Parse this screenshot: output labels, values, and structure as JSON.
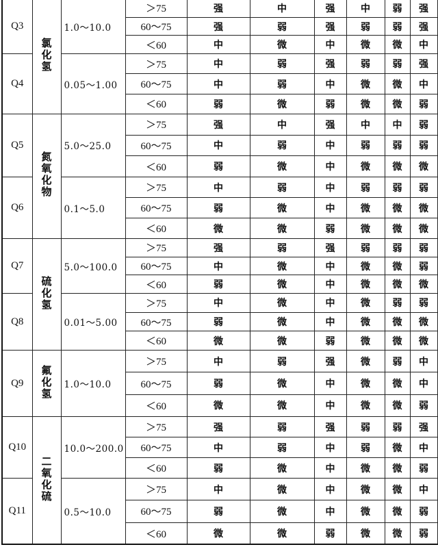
{
  "groups": [
    {
      "gas": "氯化氢",
      "items": [
        {
          "code": "Q3",
          "range": "1.0～10.0",
          "rows": [
            [
              "＞75",
              [
                "强",
                "中",
                "强",
                "中",
                "弱",
                "强"
              ]
            ],
            [
              "60～75",
              [
                "强",
                "弱",
                "强",
                "弱",
                "弱",
                "强"
              ]
            ],
            [
              "＜60",
              [
                "中",
                "微",
                "中",
                "微",
                "微",
                "中"
              ]
            ]
          ]
        },
        {
          "code": "Q4",
          "range": "0.05～1.00",
          "rows": [
            [
              "＞75",
              [
                "中",
                "弱",
                "强",
                "弱",
                "弱",
                "强"
              ]
            ],
            [
              "60～75",
              [
                "中",
                "弱",
                "中",
                "微",
                "微",
                "中"
              ]
            ],
            [
              "＜60",
              [
                "弱",
                "微",
                "弱",
                "微",
                "微",
                "弱"
              ]
            ]
          ]
        }
      ]
    },
    {
      "gas": "氮氧化物",
      "items": [
        {
          "code": "Q5",
          "range": "5.0～25.0",
          "rows": [
            [
              "＞75",
              [
                "强",
                "中",
                "强",
                "中",
                "中",
                "弱"
              ]
            ],
            [
              "60～75",
              [
                "中",
                "弱",
                "中",
                "弱",
                "弱",
                "弱"
              ]
            ],
            [
              "＜60",
              [
                "弱",
                "微",
                "中",
                "微",
                "微",
                "微"
              ]
            ]
          ]
        },
        {
          "code": "Q6",
          "range": "0.1～5.0",
          "rows": [
            [
              "＞75",
              [
                "中",
                "弱",
                "中",
                "弱",
                "弱",
                "弱"
              ]
            ],
            [
              "60～75",
              [
                "弱",
                "微",
                "中",
                "微",
                "微",
                "微"
              ]
            ],
            [
              "＜60",
              [
                "微",
                "微",
                "弱",
                "微",
                "微",
                "微"
              ]
            ]
          ]
        }
      ]
    },
    {
      "gas": "硫化氢",
      "items": [
        {
          "code": "Q7",
          "range": "5.0～100.0",
          "rows": [
            [
              "＞75",
              [
                "强",
                "弱",
                "强",
                "弱",
                "弱",
                "弱"
              ]
            ],
            [
              "60～75",
              [
                "中",
                "微",
                "中",
                "微",
                "微",
                "弱"
              ]
            ],
            [
              "＜60",
              [
                "弱",
                "微",
                "中",
                "微",
                "微",
                "微"
              ]
            ]
          ]
        },
        {
          "code": "Q8",
          "range": "0.01～5.00",
          "rows": [
            [
              "＞75",
              [
                "中",
                "微",
                "中",
                "微",
                "弱",
                "弱"
              ]
            ],
            [
              "60～75",
              [
                "弱",
                "微",
                "中",
                "微",
                "微",
                "微"
              ]
            ],
            [
              "＜60",
              [
                "微",
                "微",
                "弱",
                "微",
                "微",
                "微"
              ]
            ]
          ]
        }
      ]
    },
    {
      "gas": "氟化氢",
      "items": [
        {
          "code": "Q9",
          "range": "1.0～10.0",
          "rows": [
            [
              "＞75",
              [
                "中",
                "弱",
                "强",
                "微",
                "弱",
                "中"
              ]
            ],
            [
              "60～75",
              [
                "弱",
                "微",
                "中",
                "微",
                "微",
                "中"
              ]
            ],
            [
              "＜60",
              [
                "微",
                "微",
                "中",
                "微",
                "微",
                "弱"
              ]
            ]
          ]
        }
      ]
    },
    {
      "gas": "二氧化硫",
      "items": [
        {
          "code": "Q10",
          "range": "10.0～200.0",
          "rows": [
            [
              "＞75",
              [
                "强",
                "弱",
                "强",
                "弱",
                "弱",
                "强"
              ]
            ],
            [
              "60～75",
              [
                "中",
                "弱",
                "中",
                "弱",
                "微",
                "中"
              ]
            ],
            [
              "＜60",
              [
                "弱",
                "微",
                "中",
                "微",
                "微",
                "弱"
              ]
            ]
          ]
        },
        {
          "code": "Q11",
          "range": "0.5～10.0",
          "rows": [
            [
              "＞75",
              [
                "中",
                "微",
                "中",
                "微",
                "微",
                "中"
              ]
            ],
            [
              "60～75",
              [
                "弱",
                "微",
                "中",
                "微",
                "微",
                "弱"
              ]
            ],
            [
              "＜60",
              [
                "微",
                "微",
                "弱",
                "微",
                "微",
                "弱"
              ]
            ]
          ]
        }
      ]
    }
  ]
}
